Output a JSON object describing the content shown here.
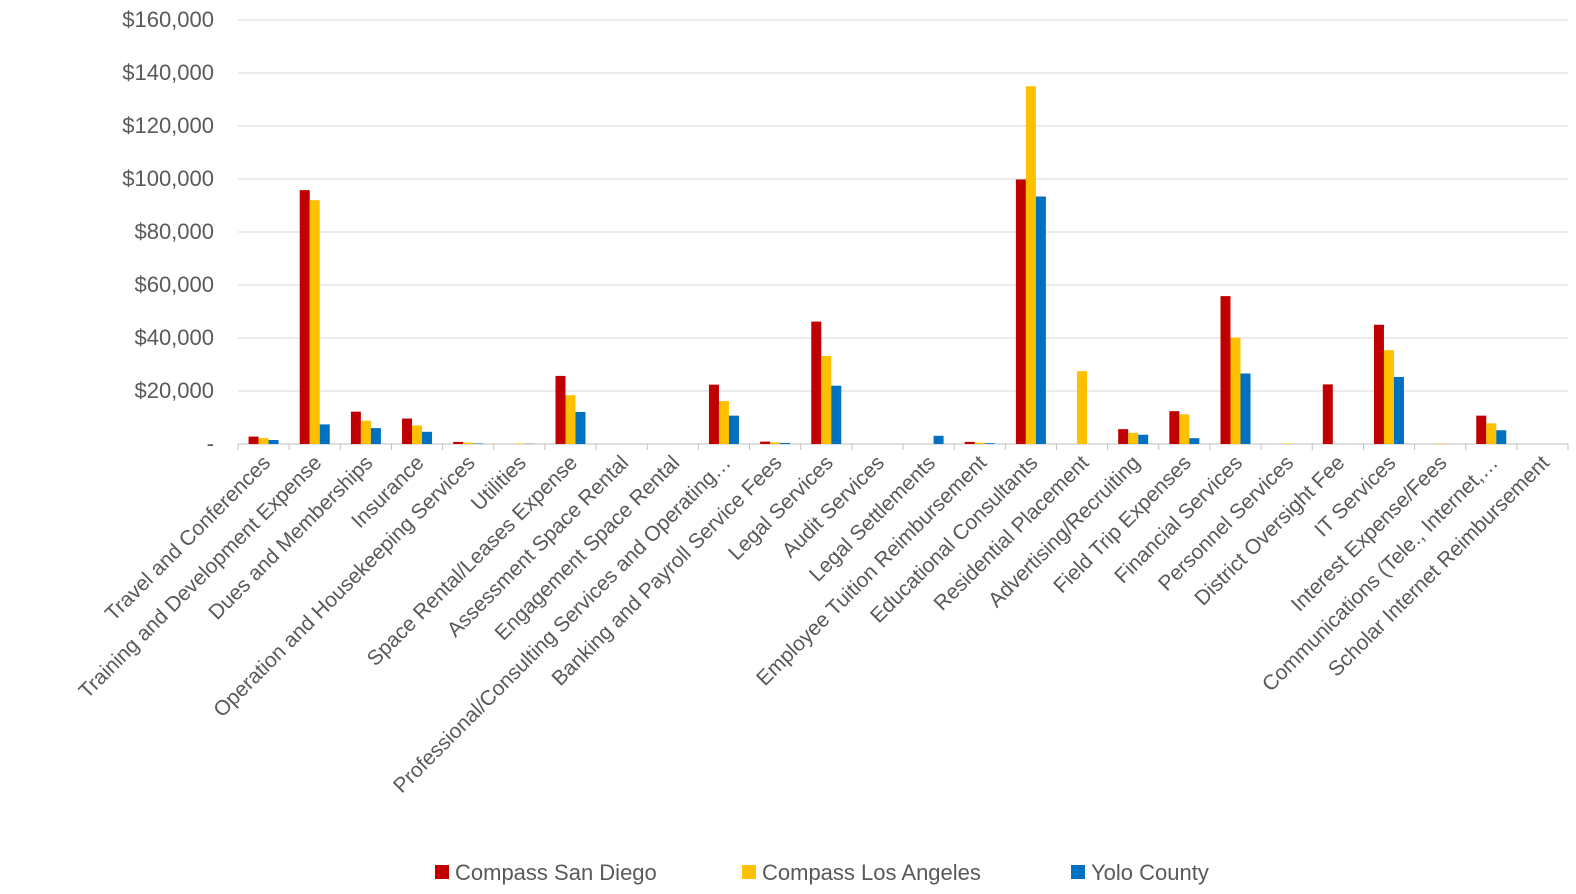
{
  "chart_data": {
    "type": "bar",
    "title": "",
    "xlabel": "",
    "ylabel": "",
    "ylim": [
      0,
      160000
    ],
    "y_ticks": [
      {
        "value": 0,
        "label": "-"
      },
      {
        "value": 20000,
        "label": "$20,000"
      },
      {
        "value": 40000,
        "label": "$40,000"
      },
      {
        "value": 60000,
        "label": "$60,000"
      },
      {
        "value": 80000,
        "label": "$80,000"
      },
      {
        "value": 100000,
        "label": "$100,000"
      },
      {
        "value": 120000,
        "label": "$120,000"
      },
      {
        "value": 140000,
        "label": "$140,000"
      },
      {
        "value": 160000,
        "label": "$160,000"
      }
    ],
    "grid": true,
    "legend_position": "bottom",
    "categories": [
      "Travel and Conferences",
      "Training and Development Expense",
      "Dues and Memberships",
      "Insurance",
      "Operation and Housekeeping Services",
      "Utilities",
      "Space Rental/Leases Expense",
      "Assessment Space Rental",
      "Engagement Space Rental",
      "Professional/Consulting Services and Operating…",
      "Banking and Payroll Service Fees",
      "Legal Services",
      "Audit Services",
      "Legal Settlements",
      "Employee Tuition Reimbursement",
      "Educational Consultants",
      "Residential Placement",
      "Advertising/Recruiting",
      "Field Trip Expenses",
      "Financial Services",
      "Personnel Services",
      "District Oversight Fee",
      "IT Services",
      "Interest Expense/Fees",
      "Communications (Tele., Internet,…",
      "Scholar Internet Reimbursement"
    ],
    "series": [
      {
        "name": "Compass San Diego",
        "color": "#C00000",
        "values": [
          2800,
          95800,
          12200,
          9600,
          800,
          0,
          25700,
          0,
          0,
          22400,
          900,
          46200,
          0,
          0,
          800,
          99800,
          0,
          5600,
          12400,
          55800,
          0,
          22500,
          45000,
          0,
          10700,
          0
        ]
      },
      {
        "name": "Compass Los Angeles",
        "color": "#FFC000",
        "values": [
          2200,
          92000,
          8800,
          7000,
          500,
          200,
          18400,
          0,
          0,
          16200,
          600,
          33200,
          0,
          0,
          500,
          135000,
          27500,
          4200,
          11200,
          40200,
          200,
          0,
          35400,
          200,
          7800,
          0
        ]
      },
      {
        "name": "Yolo County",
        "color": "#0070C0",
        "values": [
          1500,
          7400,
          6000,
          4600,
          200,
          100,
          12100,
          0,
          0,
          10700,
          400,
          22000,
          0,
          3100,
          300,
          93400,
          0,
          3500,
          2200,
          26600,
          0,
          0,
          25300,
          0,
          5200,
          0
        ]
      }
    ]
  }
}
